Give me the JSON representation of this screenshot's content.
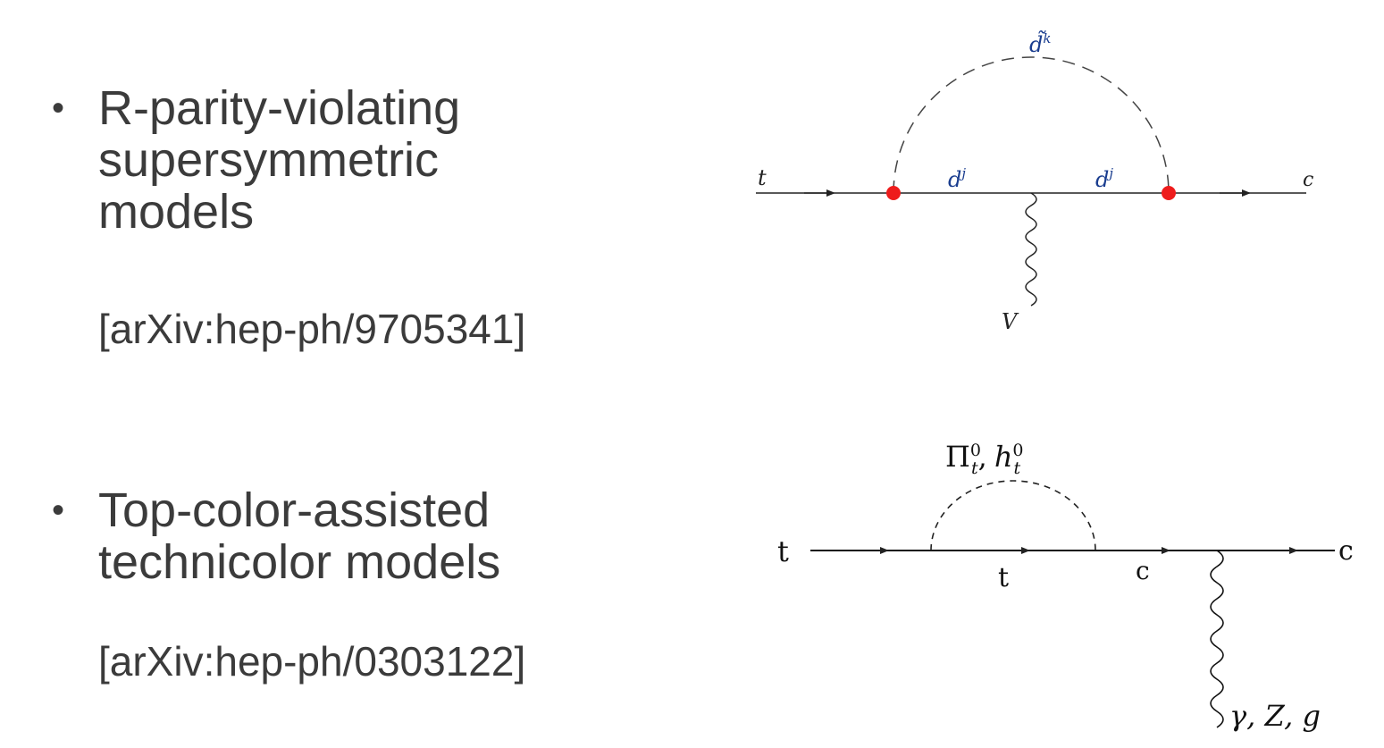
{
  "bullets": [
    {
      "dot": "•",
      "text": "R-parity-violating\nsupersymmetric\nmodels",
      "ref": "[arXiv:hep-ph/9705341]"
    },
    {
      "dot": "•",
      "text": "Top-color-assisted\ntechnicolor models",
      "ref": "[arXiv:hep-ph/0303122]"
    }
  ],
  "diagram1": {
    "labels": {
      "t": "t",
      "c": "c",
      "squark": "d̃",
      "squark_sup": "k",
      "quark_left": "d",
      "quark_right": "d",
      "quark_sup": "j",
      "boson": "V"
    },
    "colors": {
      "line": "#222222",
      "vertex": "#ee1c1c",
      "label_blue": "#1a3d8f"
    }
  },
  "diagram2": {
    "labels": {
      "t_in": "t",
      "t_loop": "t",
      "c_mid": "c",
      "c_out": "c",
      "loop_pi": "Π",
      "loop_h": "h",
      "loop_sub": "t",
      "loop_sup": "0",
      "comma": ",",
      "boson": "γ, Z, g"
    },
    "colors": {
      "line": "#111111"
    }
  }
}
